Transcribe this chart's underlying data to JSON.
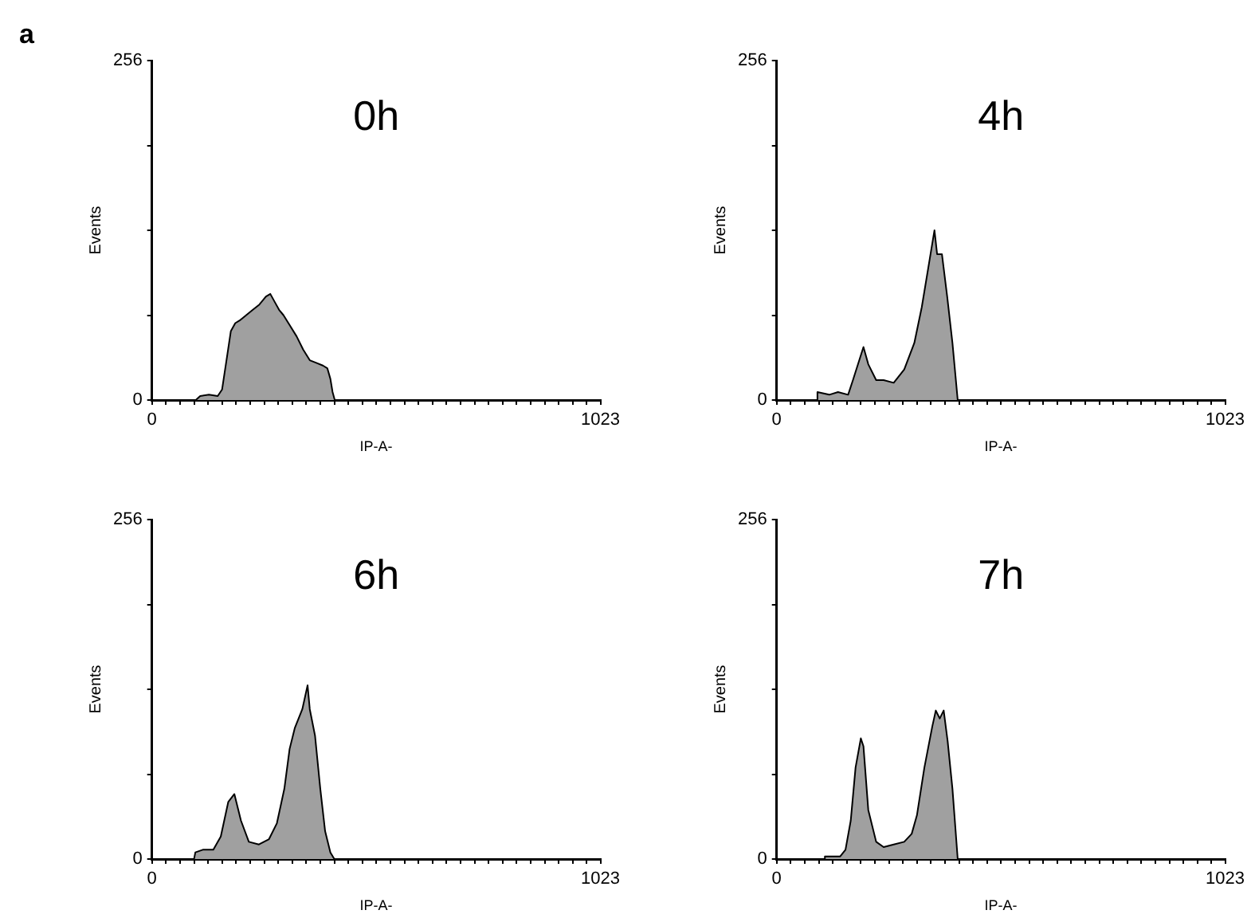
{
  "chart_data": [
    {
      "type": "area",
      "title": "0h",
      "xlabel": "IP-A-",
      "ylabel": "Events",
      "annotations": [
        "a"
      ],
      "grid": false,
      "legend": false,
      "marker": "none",
      "xlim": [
        0,
        1023
      ],
      "ylim": [
        0,
        256
      ],
      "xticks": [
        {
          "value": 0,
          "label": "0"
        },
        {
          "value": 32,
          "label": null
        },
        {
          "value": 64,
          "label": null
        },
        {
          "value": 96,
          "label": null
        },
        {
          "value": 128,
          "label": null
        },
        {
          "value": 160,
          "label": null
        },
        {
          "value": 192,
          "label": null
        },
        {
          "value": 224,
          "label": null
        },
        {
          "value": 256,
          "label": null
        },
        {
          "value": 288,
          "label": null
        },
        {
          "value": 320,
          "label": null
        },
        {
          "value": 352,
          "label": null
        },
        {
          "value": 384,
          "label": null
        },
        {
          "value": 416,
          "label": null
        },
        {
          "value": 448,
          "label": null
        },
        {
          "value": 480,
          "label": null
        },
        {
          "value": 512,
          "label": null
        },
        {
          "value": 544,
          "label": null
        },
        {
          "value": 576,
          "label": null
        },
        {
          "value": 608,
          "label": null
        },
        {
          "value": 640,
          "label": null
        },
        {
          "value": 672,
          "label": null
        },
        {
          "value": 704,
          "label": null
        },
        {
          "value": 736,
          "label": null
        },
        {
          "value": 768,
          "label": null
        },
        {
          "value": 800,
          "label": null
        },
        {
          "value": 832,
          "label": null
        },
        {
          "value": 864,
          "label": null
        },
        {
          "value": 896,
          "label": null
        },
        {
          "value": 928,
          "label": null
        },
        {
          "value": 960,
          "label": null
        },
        {
          "value": 992,
          "label": null
        },
        {
          "value": 1023,
          "label": "1023"
        }
      ],
      "yticks": [
        {
          "value": 0,
          "label": "0"
        },
        {
          "value": 64,
          "label": null
        },
        {
          "value": 128,
          "label": null
        },
        {
          "value": 192,
          "label": null
        },
        {
          "value": 256,
          "label": "256"
        }
      ],
      "series": [
        {
          "color": "#a0a0a0",
          "x": [
            0,
            100,
            110,
            130,
            150,
            160,
            170,
            180,
            190,
            200,
            215,
            230,
            245,
            260,
            270,
            280,
            290,
            300,
            315,
            330,
            345,
            360,
            375,
            390,
            400,
            407,
            412,
            417,
            1023
          ],
          "values": [
            0,
            0,
            3,
            4,
            3,
            8,
            30,
            52,
            58,
            60,
            64,
            68,
            72,
            78,
            80,
            74,
            68,
            64,
            56,
            48,
            38,
            30,
            28,
            26,
            24,
            16,
            6,
            0,
            0
          ]
        }
      ]
    },
    {
      "type": "area",
      "title": "4h",
      "xlabel": "IP-A-",
      "ylabel": "Events",
      "grid": false,
      "legend": false,
      "marker": "none",
      "xlim": [
        0,
        1023
      ],
      "ylim": [
        0,
        256
      ],
      "xticks": [
        {
          "value": 0,
          "label": "0"
        },
        {
          "value": 32,
          "label": null
        },
        {
          "value": 64,
          "label": null
        },
        {
          "value": 96,
          "label": null
        },
        {
          "value": 128,
          "label": null
        },
        {
          "value": 160,
          "label": null
        },
        {
          "value": 192,
          "label": null
        },
        {
          "value": 224,
          "label": null
        },
        {
          "value": 256,
          "label": null
        },
        {
          "value": 288,
          "label": null
        },
        {
          "value": 320,
          "label": null
        },
        {
          "value": 352,
          "label": null
        },
        {
          "value": 384,
          "label": null
        },
        {
          "value": 416,
          "label": null
        },
        {
          "value": 448,
          "label": null
        },
        {
          "value": 480,
          "label": null
        },
        {
          "value": 512,
          "label": null
        },
        {
          "value": 544,
          "label": null
        },
        {
          "value": 576,
          "label": null
        },
        {
          "value": 608,
          "label": null
        },
        {
          "value": 640,
          "label": null
        },
        {
          "value": 672,
          "label": null
        },
        {
          "value": 704,
          "label": null
        },
        {
          "value": 736,
          "label": null
        },
        {
          "value": 768,
          "label": null
        },
        {
          "value": 800,
          "label": null
        },
        {
          "value": 832,
          "label": null
        },
        {
          "value": 864,
          "label": null
        },
        {
          "value": 896,
          "label": null
        },
        {
          "value": 928,
          "label": null
        },
        {
          "value": 960,
          "label": null
        },
        {
          "value": 992,
          "label": null
        },
        {
          "value": 1023,
          "label": "1023"
        }
      ],
      "yticks": [
        {
          "value": 0,
          "label": "0"
        },
        {
          "value": 64,
          "label": null
        },
        {
          "value": 128,
          "label": null
        },
        {
          "value": 192,
          "label": null
        },
        {
          "value": 256,
          "label": "256"
        }
      ],
      "series": [
        {
          "color": "#a0a0a0",
          "x": [
            0,
            90,
            93,
            120,
            140,
            163,
            174,
            198,
            209,
            227,
            244,
            267,
            291,
            314,
            331,
            349,
            360,
            366,
            377,
            389,
            401,
            413,
            1023
          ],
          "values": [
            0,
            0,
            6,
            4,
            6,
            4,
            15,
            40,
            27,
            15,
            15,
            13,
            23,
            43,
            70,
            106,
            128,
            110,
            110,
            78,
            43,
            0,
            0
          ]
        }
      ]
    },
    {
      "type": "area",
      "title": "6h",
      "xlabel": "IP-A-",
      "ylabel": "Events",
      "grid": false,
      "legend": false,
      "marker": "none",
      "xlim": [
        0,
        1023
      ],
      "ylim": [
        0,
        256
      ],
      "xticks": [
        {
          "value": 0,
          "label": "0"
        },
        {
          "value": 32,
          "label": null
        },
        {
          "value": 64,
          "label": null
        },
        {
          "value": 96,
          "label": null
        },
        {
          "value": 128,
          "label": null
        },
        {
          "value": 160,
          "label": null
        },
        {
          "value": 192,
          "label": null
        },
        {
          "value": 224,
          "label": null
        },
        {
          "value": 256,
          "label": null
        },
        {
          "value": 288,
          "label": null
        },
        {
          "value": 320,
          "label": null
        },
        {
          "value": 352,
          "label": null
        },
        {
          "value": 384,
          "label": null
        },
        {
          "value": 416,
          "label": null
        },
        {
          "value": 448,
          "label": null
        },
        {
          "value": 480,
          "label": null
        },
        {
          "value": 512,
          "label": null
        },
        {
          "value": 544,
          "label": null
        },
        {
          "value": 576,
          "label": null
        },
        {
          "value": 608,
          "label": null
        },
        {
          "value": 640,
          "label": null
        },
        {
          "value": 672,
          "label": null
        },
        {
          "value": 704,
          "label": null
        },
        {
          "value": 736,
          "label": null
        },
        {
          "value": 768,
          "label": null
        },
        {
          "value": 800,
          "label": null
        },
        {
          "value": 832,
          "label": null
        },
        {
          "value": 864,
          "label": null
        },
        {
          "value": 896,
          "label": null
        },
        {
          "value": 928,
          "label": null
        },
        {
          "value": 960,
          "label": null
        },
        {
          "value": 992,
          "label": null
        },
        {
          "value": 1023,
          "label": "1023"
        }
      ],
      "yticks": [
        {
          "value": 0,
          "label": "0"
        },
        {
          "value": 64,
          "label": null
        },
        {
          "value": 128,
          "label": null
        },
        {
          "value": 192,
          "label": null
        },
        {
          "value": 256,
          "label": "256"
        }
      ],
      "series": [
        {
          "color": "#a0a0a0",
          "x": [
            0,
            96,
            99,
            116,
            140,
            157,
            174,
            188,
            203,
            221,
            244,
            267,
            285,
            302,
            314,
            326,
            343,
            355,
            360,
            372,
            384,
            395,
            407,
            416,
            1023
          ],
          "values": [
            0,
            0,
            5,
            7,
            7,
            17,
            43,
            49,
            29,
            13,
            11,
            15,
            27,
            53,
            83,
            99,
            113,
            131,
            113,
            93,
            53,
            21,
            5,
            0,
            0
          ]
        }
      ]
    },
    {
      "type": "area",
      "title": "7h",
      "xlabel": "IP-A-",
      "ylabel": "Events",
      "grid": false,
      "legend": false,
      "marker": "none",
      "xlim": [
        0,
        1023
      ],
      "ylim": [
        0,
        256
      ],
      "xticks": [
        {
          "value": 0,
          "label": "0"
        },
        {
          "value": 32,
          "label": null
        },
        {
          "value": 64,
          "label": null
        },
        {
          "value": 96,
          "label": null
        },
        {
          "value": 128,
          "label": null
        },
        {
          "value": 160,
          "label": null
        },
        {
          "value": 192,
          "label": null
        },
        {
          "value": 224,
          "label": null
        },
        {
          "value": 256,
          "label": null
        },
        {
          "value": 288,
          "label": null
        },
        {
          "value": 320,
          "label": null
        },
        {
          "value": 352,
          "label": null
        },
        {
          "value": 384,
          "label": null
        },
        {
          "value": 416,
          "label": null
        },
        {
          "value": 448,
          "label": null
        },
        {
          "value": 480,
          "label": null
        },
        {
          "value": 512,
          "label": null
        },
        {
          "value": 544,
          "label": null
        },
        {
          "value": 576,
          "label": null
        },
        {
          "value": 608,
          "label": null
        },
        {
          "value": 640,
          "label": null
        },
        {
          "value": 672,
          "label": null
        },
        {
          "value": 704,
          "label": null
        },
        {
          "value": 736,
          "label": null
        },
        {
          "value": 768,
          "label": null
        },
        {
          "value": 800,
          "label": null
        },
        {
          "value": 832,
          "label": null
        },
        {
          "value": 864,
          "label": null
        },
        {
          "value": 896,
          "label": null
        },
        {
          "value": 928,
          "label": null
        },
        {
          "value": 960,
          "label": null
        },
        {
          "value": 992,
          "label": null
        },
        {
          "value": 1023,
          "label": "1023"
        }
      ],
      "yticks": [
        {
          "value": 0,
          "label": "0"
        },
        {
          "value": 64,
          "label": null
        },
        {
          "value": 128,
          "label": null
        },
        {
          "value": 192,
          "label": null
        },
        {
          "value": 256,
          "label": "256"
        }
      ],
      "series": [
        {
          "color": "#a0a0a0",
          "x": [
            0,
            108,
            110,
            145,
            157,
            169,
            180,
            192,
            198,
            209,
            227,
            244,
            267,
            291,
            308,
            320,
            337,
            355,
            363,
            372,
            381,
            390,
            401,
            413,
            1023
          ],
          "values": [
            0,
            0,
            2,
            2,
            7,
            29,
            69,
            91,
            85,
            37,
            13,
            9,
            11,
            13,
            19,
            33,
            69,
            100,
            112,
            106,
            112,
            89,
            53,
            0,
            0
          ]
        }
      ]
    }
  ]
}
